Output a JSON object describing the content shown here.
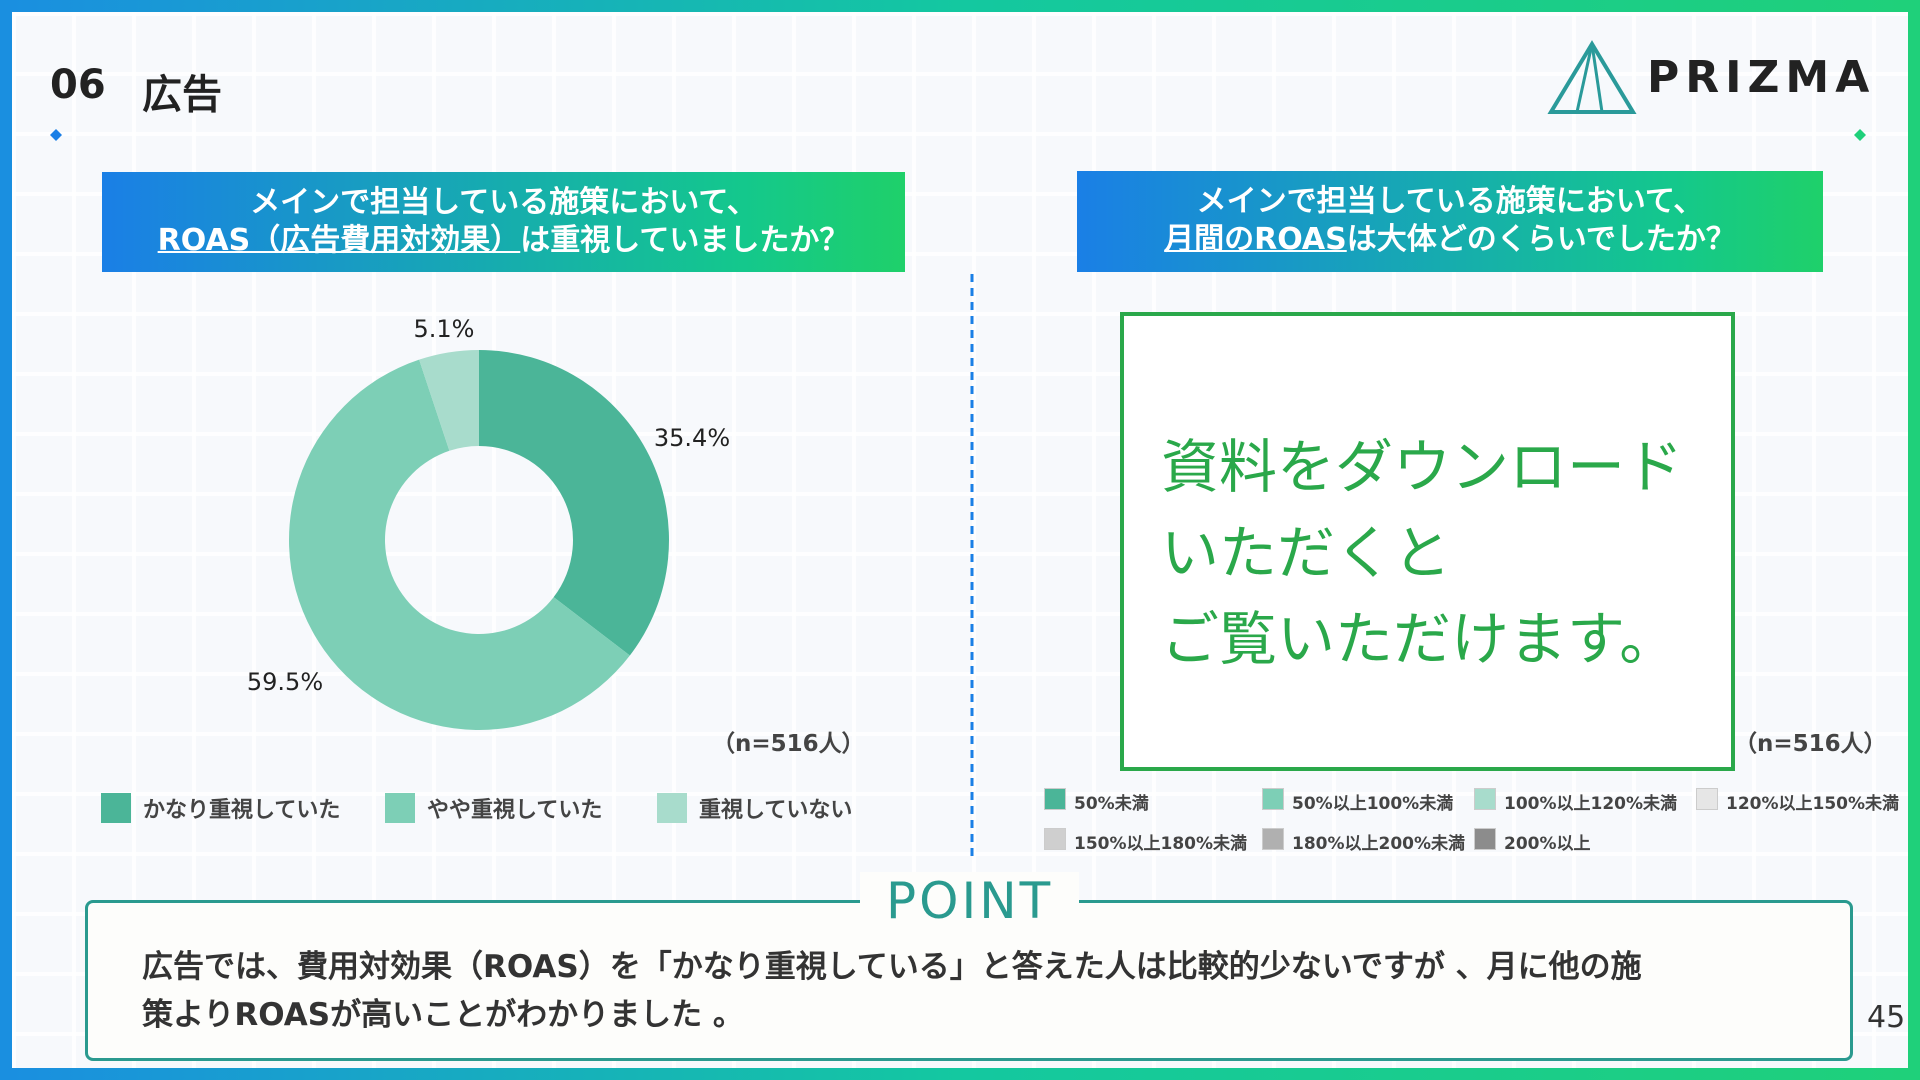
{
  "header": {
    "number": "06",
    "title": "広告",
    "logo": "PRIZMA"
  },
  "chart_data": {
    "type": "donut",
    "title": {
      "line1": "メインで担当している施策において、",
      "line2_underlined": "ROAS（広告費用対効果）",
      "line2_rest": "は重視していましたか？"
    },
    "categories": [
      "かなり重視していた",
      "やや重視していた",
      "重視していない"
    ],
    "values": [
      35.4,
      59.5,
      5.1
    ],
    "value_labels": [
      "35.4%",
      "59.5%",
      "5.1%"
    ],
    "colors": [
      "#4bb598",
      "#7dcfb6",
      "#a8dccc"
    ],
    "note": "（n=516人）"
  },
  "right_panel": {
    "title": {
      "line1": "メインで担当している施策において、",
      "line2_underlined": "月間のROAS",
      "line2_rest": "は大体どのくらいでしたか？"
    },
    "overlay": [
      "資料をダウンロード",
      "いただくと",
      "ご覧いただけます。"
    ],
    "note": "（n=516人）",
    "legend": [
      {
        "name": "50%未満",
        "color": "#4bb598"
      },
      {
        "name": "50%以上100%未満",
        "color": "#7dcfb6"
      },
      {
        "name": "100%以上120%未満",
        "color": "#a8dccc"
      },
      {
        "name": "120%以上150%未満",
        "color": "#e6e6e6"
      },
      {
        "name": "150%以上180%未満",
        "color": "#cfcfcf"
      },
      {
        "name": "180%以上200%未満",
        "color": "#b0b0b0"
      },
      {
        "name": "200%以上",
        "color": "#8c8c8c"
      }
    ]
  },
  "point": {
    "label": "POINT",
    "lines": [
      "広告では、費用対効果（ROAS）を「かなり重視している」と答えた人は比較的少ないですが 、月に他の施",
      "策よりROASが高いことがわかりました 。"
    ]
  },
  "page_number": "45"
}
